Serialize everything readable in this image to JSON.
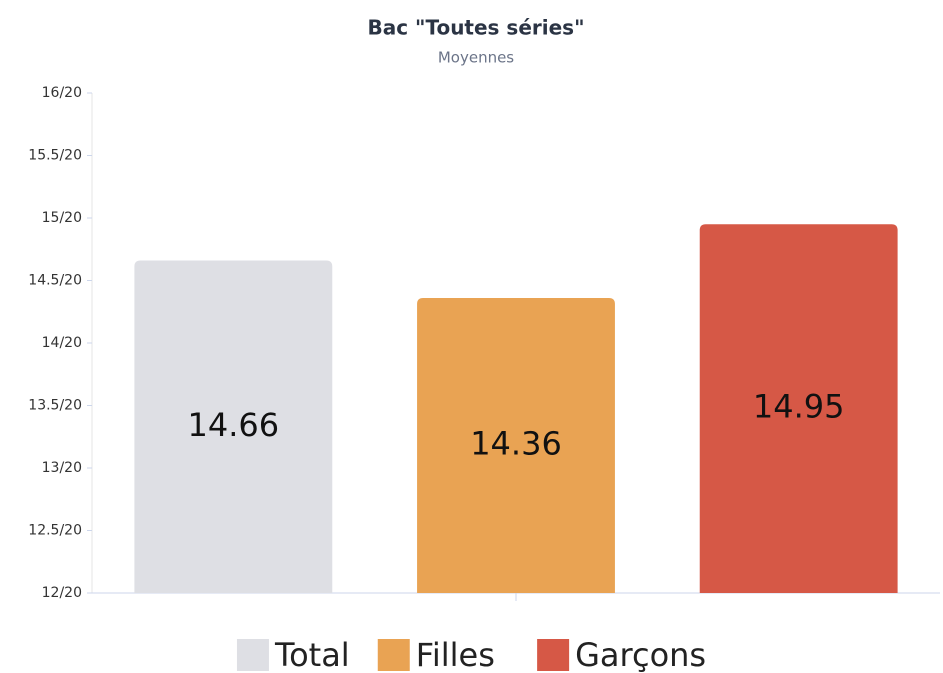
{
  "chart_data": {
    "type": "bar",
    "title": "Bac \"Toutes séries\"",
    "subtitle": "Moyennes",
    "categories": [
      null
    ],
    "series": [
      {
        "name": "Total",
        "color": "#dedfe4",
        "values": [
          14.66
        ]
      },
      {
        "name": "Filles",
        "color": "#e9a353",
        "values": [
          14.36
        ]
      },
      {
        "name": "Garçons",
        "color": "#d65846",
        "values": [
          14.95
        ]
      }
    ],
    "ylim": [
      12,
      16
    ],
    "yticks": [
      {
        "value": 12,
        "label": "12/20"
      },
      {
        "value": 12.5,
        "label": "12.5/20"
      },
      {
        "value": 13,
        "label": "13/20"
      },
      {
        "value": 13.5,
        "label": "13.5/20"
      },
      {
        "value": 14,
        "label": "14/20"
      },
      {
        "value": 14.5,
        "label": "14.5/20"
      },
      {
        "value": 15,
        "label": "15/20"
      },
      {
        "value": 15.5,
        "label": "15.5/20"
      },
      {
        "value": 16,
        "label": "16/20"
      }
    ],
    "grid": false,
    "legend": "bottom"
  }
}
